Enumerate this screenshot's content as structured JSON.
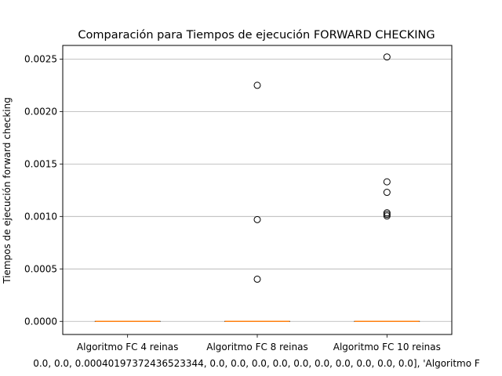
{
  "chart_data": {
    "type": "box",
    "title": "Comparación para Tiempos de ejecución FORWARD CHECKING",
    "xlabel": "0.0, 0.0, 0.00040197372436523344, 0.0, 0.0, 0.0, 0.0, 0.0, 0.0, 0.0, 0.0, 0.0, 0.0], 'Algoritmo F",
    "ylabel": "Tiempos de ejecución forward checking",
    "ylim": [
      -0.000125,
      0.00263
    ],
    "yticks": [
      0.0,
      0.0005,
      0.001,
      0.0015,
      0.002,
      0.0025
    ],
    "ytick_labels": [
      "0.0000",
      "0.0005",
      "0.0010",
      "0.0015",
      "0.0020",
      "0.0025"
    ],
    "grid": "y",
    "colors": {
      "median": "#ff7f0e",
      "grid": "#b0b0b0",
      "box": "#000000"
    },
    "categories": [
      "Algoritmo FC 4 reinas",
      "Algoritmo FC 8 reinas",
      "Algoritmo FC 10 reinas"
    ],
    "series": [
      {
        "q1": 0.0,
        "median": 0.0,
        "q3": 0.0,
        "whisker_low": 0.0,
        "whisker_high": 0.0,
        "fliers": []
      },
      {
        "q1": 0.0,
        "median": 0.0,
        "q3": 0.0,
        "whisker_low": 0.0,
        "whisker_high": 0.0,
        "fliers": [
          0.00040197372436523345,
          0.00097,
          0.00225
        ]
      },
      {
        "q1": 0.0,
        "median": 0.0,
        "q3": 0.0,
        "whisker_low": 0.0,
        "whisker_high": 0.0,
        "fliers": [
          0.001005,
          0.00102,
          0.001035,
          0.00123,
          0.00133,
          0.00252
        ]
      }
    ]
  }
}
